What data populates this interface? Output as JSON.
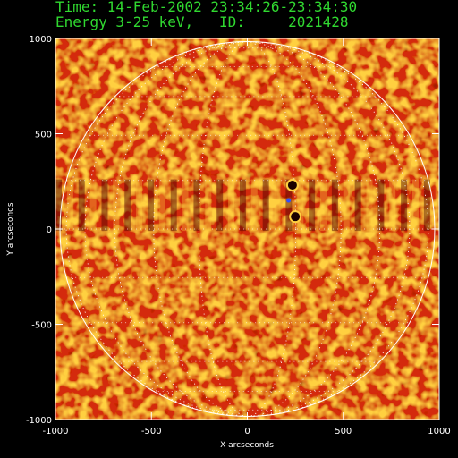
{
  "header": {
    "time_line": "Time: 14-Feb-2002 23:34:26-23:34:30",
    "energy_line": "Energy 3-25 keV,   ID:     2021428"
  },
  "axes": {
    "x_label": "X arcseconds",
    "y_label": "Y arcseconds",
    "x_ticks": [
      "-1000",
      "-500",
      "0",
      "500",
      "1000"
    ],
    "y_ticks": [
      "1000",
      "500",
      "0",
      "-500",
      "-1000"
    ],
    "xlim": [
      -1000,
      1000
    ],
    "ylim": [
      -1000,
      1000
    ]
  },
  "colors": {
    "background": "#000000",
    "header_text": "#30d830",
    "axis": "#ffffff",
    "map_base": "#d42a0a",
    "map_hot": "#ffd040",
    "map_dark": "#4a0000",
    "limb": "#ffffff"
  },
  "solar_disk": {
    "radius_arcsec": 980,
    "grid_spacing_deg": 15
  },
  "sources": [
    {
      "x": 235,
      "y": 230,
      "kind": "dark"
    },
    {
      "x": 250,
      "y": 65,
      "kind": "dark"
    },
    {
      "x": 215,
      "y": 150,
      "kind": "marker"
    }
  ]
}
